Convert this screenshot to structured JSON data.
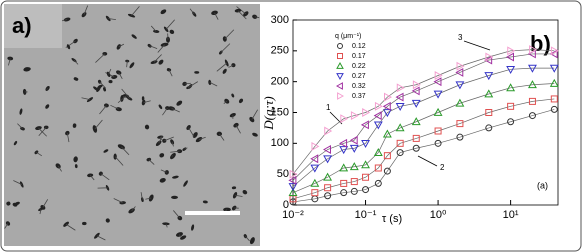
{
  "panel_a": {
    "label": "a)"
  },
  "chart_data": {
    "type": "scatter",
    "panel_label": "b)",
    "corner_label": "(a)",
    "y_label": "D(q;τ)",
    "x_label": "τ (s)",
    "legend_title": "q (μm⁻¹)",
    "annotations": [
      "1",
      "2",
      "3"
    ],
    "x": [
      0.01,
      0.02,
      0.03,
      0.05,
      0.07,
      0.1,
      0.15,
      0.2,
      0.3,
      0.5,
      1,
      2,
      5,
      10,
      20,
      40
    ],
    "log_x": true,
    "xlim": [
      0.01,
      45
    ],
    "ylim": [
      0,
      300
    ],
    "xticks": [
      {
        "value": 0.01,
        "label": "10⁻²"
      },
      {
        "value": 0.1,
        "label": "10⁻¹"
      },
      {
        "value": 1,
        "label": "10⁰"
      },
      {
        "value": 10,
        "label": "10¹"
      }
    ],
    "yticks": [
      0,
      50,
      100,
      150,
      200,
      250,
      300
    ],
    "series": [
      {
        "name": "0.12",
        "color": "#333333",
        "marker": "circle",
        "values": [
          5,
          10,
          15,
          20,
          22,
          25,
          35,
          55,
          85,
          92,
          100,
          110,
          125,
          135,
          145,
          155
        ]
      },
      {
        "name": "0.17",
        "color": "#e05050",
        "marker": "square",
        "values": [
          10,
          20,
          28,
          35,
          38,
          45,
          60,
          80,
          100,
          108,
          120,
          132,
          150,
          160,
          168,
          172
        ]
      },
      {
        "name": "0.22",
        "color": "#2a9a2a",
        "marker": "triangle-up",
        "values": [
          20,
          35,
          45,
          60,
          62,
          65,
          85,
          115,
          125,
          135,
          150,
          165,
          180,
          190,
          195,
          197
        ]
      },
      {
        "name": "0.27",
        "color": "#3535c8",
        "marker": "triangle-down",
        "values": [
          30,
          60,
          75,
          90,
          92,
          100,
          130,
          150,
          160,
          165,
          180,
          195,
          210,
          220,
          222,
          222
        ]
      },
      {
        "name": "0.32",
        "color": "#a030a0",
        "marker": "triangle-left",
        "values": [
          40,
          75,
          90,
          100,
          105,
          130,
          145,
          160,
          175,
          185,
          200,
          215,
          235,
          240,
          245,
          245
        ]
      },
      {
        "name": "0.37",
        "color": "#f4a0d0",
        "marker": "triangle-right",
        "values": [
          50,
          95,
          120,
          140,
          145,
          150,
          160,
          175,
          190,
          195,
          210,
          225,
          240,
          250,
          252,
          250
        ]
      }
    ]
  }
}
